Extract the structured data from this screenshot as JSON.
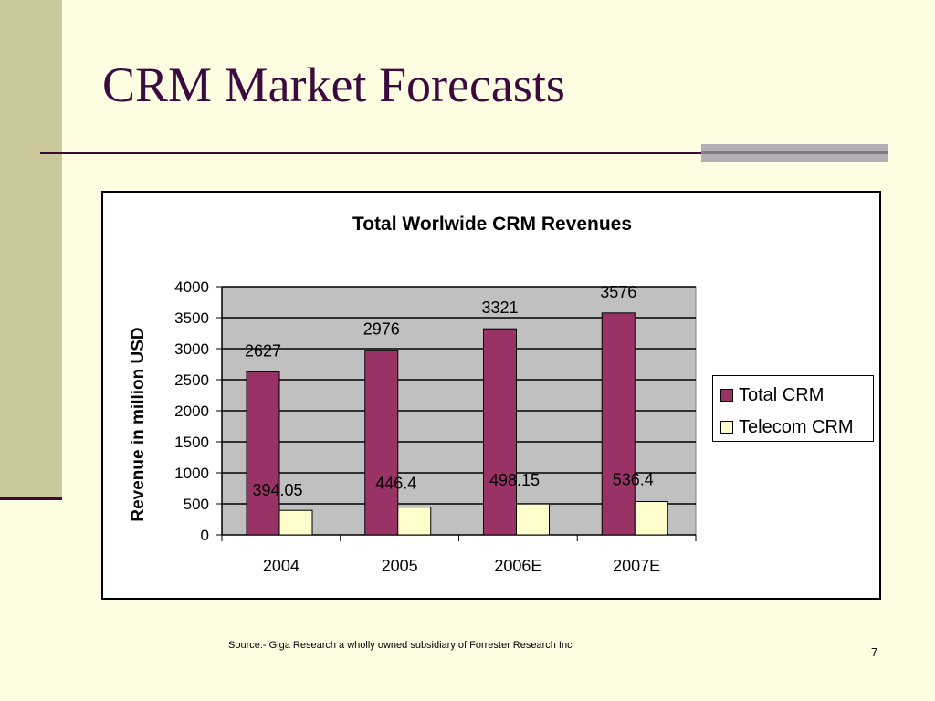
{
  "slide": {
    "title": "CRM Market Forecasts",
    "source": "Source:- Giga Research a wholly owned subsidiary of Forrester Research Inc",
    "page_number": "7"
  },
  "colors": {
    "background": "#FFFDE1",
    "sidebar": "#CBC89B",
    "title": "#3B0A3E",
    "total_crm": "#993366",
    "telecom_crm": "#FFFFCC",
    "plot_area": "#C0C0C0"
  },
  "chart_data": {
    "type": "bar",
    "title": "Total Worlwide CRM Revenues",
    "xlabel": "",
    "ylabel": "Revenue in million USD",
    "categories": [
      "2004",
      "2005",
      "2006E",
      "2007E"
    ],
    "series": [
      {
        "name": "Total CRM",
        "values": [
          2627,
          2976,
          3321,
          3576
        ],
        "labels": [
          "2627",
          "2976",
          "3321",
          "3576"
        ],
        "color": "#993366"
      },
      {
        "name": "Telecom CRM",
        "values": [
          394.05,
          446.4,
          498.15,
          536.4
        ],
        "labels": [
          "394.05",
          "446.4",
          "498.15",
          "536.4"
        ],
        "color": "#FFFFCC"
      }
    ],
    "ylim": [
      0,
      4000
    ],
    "yticks": [
      "0",
      "500",
      "1000",
      "1500",
      "2000",
      "2500",
      "3000",
      "3500",
      "4000"
    ],
    "grid": true,
    "legend_position": "right"
  }
}
